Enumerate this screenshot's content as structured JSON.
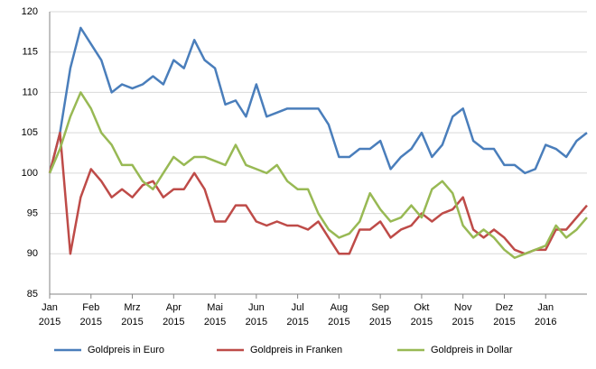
{
  "chart_data": {
    "type": "line",
    "x": [
      0,
      0.25,
      0.5,
      0.75,
      1,
      1.25,
      1.5,
      1.75,
      2,
      2.25,
      2.5,
      2.75,
      3,
      3.25,
      3.5,
      3.75,
      4,
      4.25,
      4.5,
      4.75,
      5,
      5.25,
      5.5,
      5.75,
      6,
      6.25,
      6.5,
      6.75,
      7,
      7.25,
      7.5,
      7.75,
      8,
      8.25,
      8.5,
      8.75,
      9,
      9.25,
      9.5,
      9.75,
      10,
      10.25,
      10.5,
      10.75,
      11,
      11.25,
      11.5,
      11.75,
      12,
      12.25,
      12.5,
      12.75,
      13
    ],
    "series": [
      {
        "name": "Goldpreis in Euro",
        "color": "#4a7ebb",
        "values": [
          100,
          105,
          113,
          118,
          116,
          114,
          110,
          111,
          110.5,
          111,
          112,
          111,
          114,
          113,
          116.5,
          114,
          113,
          108.5,
          109,
          107,
          111,
          107,
          107.5,
          108,
          108,
          108,
          108,
          106,
          102,
          102,
          103,
          103,
          104,
          100.5,
          102,
          103,
          105,
          102,
          103.5,
          107,
          108,
          104,
          103,
          103,
          101,
          101,
          100,
          100.5,
          103.5,
          103,
          102,
          104,
          105
        ]
      },
      {
        "name": "Goldpreis in Franken",
        "color": "#be4b48",
        "values": [
          100,
          105,
          90,
          97,
          100.5,
          99,
          97,
          98,
          97,
          98.5,
          99,
          97,
          98,
          98,
          100,
          98,
          94,
          94,
          96,
          96,
          94,
          93.5,
          94,
          93.5,
          93.5,
          93,
          94,
          92,
          90,
          90,
          93,
          93,
          94,
          92,
          93,
          93.5,
          95,
          94,
          95,
          95.5,
          97,
          93,
          92,
          93,
          92,
          90.5,
          90,
          90.5,
          90.5,
          93,
          93,
          94.5,
          96
        ]
      },
      {
        "name": "Goldpreis in Dollar",
        "color": "#98b954",
        "values": [
          100,
          103,
          107,
          110,
          108,
          105,
          103.5,
          101,
          101,
          99,
          98,
          100,
          102,
          101,
          102,
          102,
          101.5,
          101,
          103.5,
          101,
          100.5,
          100,
          101,
          99,
          98,
          98,
          95,
          93,
          92,
          92.5,
          94,
          97.5,
          95.5,
          94,
          94.5,
          96,
          94.5,
          98,
          99,
          97.5,
          93.5,
          92,
          93,
          92,
          90.5,
          89.5,
          90,
          90.5,
          91,
          93.5,
          92,
          93,
          94.5
        ]
      }
    ],
    "xlim": [
      0,
      13
    ],
    "xticks": [
      {
        "value": 0,
        "label": "Jan 2015"
      },
      {
        "value": 1,
        "label": "Feb 2015"
      },
      {
        "value": 2,
        "label": "Mrz 2015"
      },
      {
        "value": 3,
        "label": "Apr 2015"
      },
      {
        "value": 4,
        "label": "Mai 2015"
      },
      {
        "value": 5,
        "label": "Jun 2015"
      },
      {
        "value": 6,
        "label": "Jul 2015"
      },
      {
        "value": 7,
        "label": "Aug 2015"
      },
      {
        "value": 8,
        "label": "Sep 2015"
      },
      {
        "value": 9,
        "label": "Okt 2015"
      },
      {
        "value": 10,
        "label": "Nov 2015"
      },
      {
        "value": 11,
        "label": "Dez 2015"
      },
      {
        "value": 12,
        "label": "Jan 2016"
      }
    ],
    "ylim": [
      85,
      120
    ],
    "yticks": [
      85,
      90,
      95,
      100,
      105,
      110,
      115,
      120
    ],
    "grid": true,
    "legend": "bottom"
  }
}
